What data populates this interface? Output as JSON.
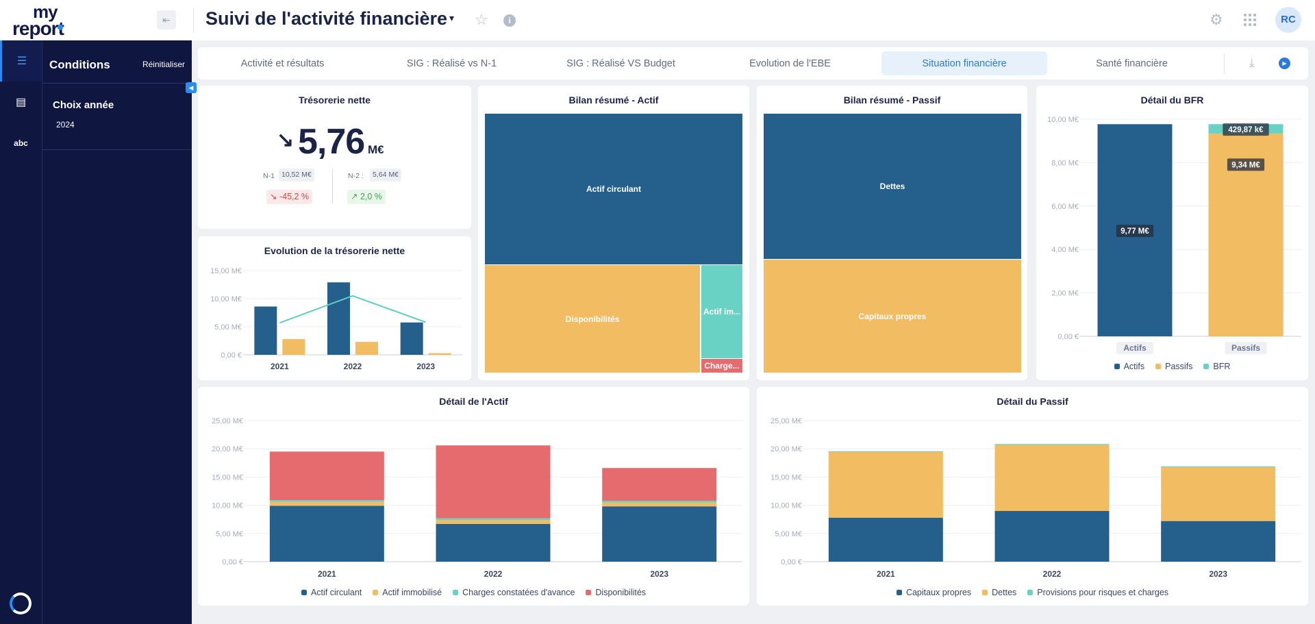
{
  "header": {
    "logo_line1": "my",
    "logo_line2": "report",
    "title": "Suivi de l'activité financière",
    "avatar_initials": "RC"
  },
  "sidebar": {
    "heading": "Conditions",
    "reset_label": "Réinitialiser",
    "filter_label": "Choix année",
    "filter_value": "2024",
    "rail_text_icon": "abc"
  },
  "tabs": [
    {
      "label": "Activité et résultats",
      "active": false
    },
    {
      "label": "SIG : Réalisé vs N-1",
      "active": false
    },
    {
      "label": "SIG : Réalisé VS Budget",
      "active": false
    },
    {
      "label": "Evolution de l'EBE",
      "active": false
    },
    {
      "label": "Situation financière",
      "active": true
    },
    {
      "label": "Santé financière",
      "active": false
    }
  ],
  "colors": {
    "blue": "#25608d",
    "yellow": "#f2bc62",
    "teal": "#6ad2c4",
    "red": "#e56b6f",
    "accent": "#2a7ad9",
    "navy": "#0f1740"
  },
  "kpi": {
    "title": "Trésorerie nette",
    "value": "5,76",
    "unit": "M€",
    "n1_label": "N-1",
    "n1_value": "10,52 M€",
    "n1_delta": "-45,2 %",
    "n2_label": "N-2 :",
    "n2_value": "5,64 M€",
    "n2_delta": "2,0 %"
  },
  "bilan_actif": {
    "title": "Bilan résumé - Actif",
    "blocks": {
      "actif_circulant": "Actif circulant",
      "disponibilites": "Disponibilités",
      "actif_immobilise": "Actif im...",
      "charges": "Charge..."
    }
  },
  "bilan_passif": {
    "title": "Bilan résumé - Passif",
    "blocks": {
      "dettes": "Dettes",
      "capitaux_propres": "Capitaux propres"
    }
  },
  "chart_data": [
    {
      "id": "evolution_tresorerie",
      "type": "bar",
      "title": "Evolution de la trésorerie nette",
      "categories": [
        "2021",
        "2022",
        "2023"
      ],
      "series": [
        {
          "values": [
            8.6,
            12.9,
            5.76
          ],
          "color": "#25608d"
        },
        {
          "values": [
            2.8,
            2.3,
            0.3
          ],
          "color": "#f2bc62"
        },
        {
          "type": "line",
          "values": [
            5.7,
            10.5,
            5.8
          ],
          "color": "#5ecdc1"
        }
      ],
      "ylim": [
        0,
        15
      ],
      "yticks": [
        "0,00 €",
        "5,00 M€",
        "10,00 M€",
        "15,00 M€"
      ]
    },
    {
      "id": "detail_bfr",
      "type": "bar",
      "stacked": true,
      "title": "Détail du BFR",
      "categories": [
        "Actifs",
        "Passifs"
      ],
      "series": [
        {
          "name": "Actifs",
          "values": [
            9.77,
            0
          ],
          "color": "#25608d"
        },
        {
          "name": "Passifs",
          "values": [
            0,
            9.34
          ],
          "color": "#f2bc62"
        },
        {
          "name": "BFR",
          "values": [
            0,
            0.43
          ],
          "color": "#6ad2c4"
        }
      ],
      "data_labels": [
        "9,77 M€",
        "9,34 M€",
        "429,87 k€"
      ],
      "ylim": [
        0,
        10
      ],
      "yticks": [
        "0,00 €",
        "2,00 M€",
        "4,00 M€",
        "6,00 M€",
        "8,00 M€",
        "10,00 M€"
      ],
      "legend": "bottom"
    },
    {
      "id": "detail_actif",
      "type": "bar",
      "stacked": true,
      "title": "Détail de l'Actif",
      "categories": [
        "2021",
        "2022",
        "2023"
      ],
      "series": [
        {
          "name": "Actif circulant",
          "values": [
            9.9,
            6.7,
            9.8
          ],
          "color": "#25608d"
        },
        {
          "name": "Actif immobilisé",
          "values": [
            0.7,
            0.7,
            0.7
          ],
          "color": "#f2bc62"
        },
        {
          "name": "Charges constatées d'avance",
          "values": [
            0.3,
            0.3,
            0.3
          ],
          "color": "#6ad2c4"
        },
        {
          "name": "Disponibilités",
          "values": [
            8.6,
            12.9,
            5.8
          ],
          "color": "#e56b6f"
        }
      ],
      "ylim": [
        0,
        25
      ],
      "yticks": [
        "0,00 €",
        "5,00 M€",
        "10,00 M€",
        "15,00 M€",
        "20,00 M€",
        "25,00 M€"
      ],
      "legend": "bottom"
    },
    {
      "id": "detail_passif",
      "type": "bar",
      "stacked": true,
      "title": "Détail du Passif",
      "categories": [
        "2021",
        "2022",
        "2023"
      ],
      "series": [
        {
          "name": "Capitaux propres",
          "values": [
            7.8,
            9.0,
            7.2
          ],
          "color": "#25608d"
        },
        {
          "name": "Dettes",
          "values": [
            11.7,
            11.7,
            9.6
          ],
          "color": "#f2bc62"
        },
        {
          "name": "Provisions pour risques et charges",
          "values": [
            0.05,
            0.15,
            0.1
          ],
          "color": "#6ad2c4"
        }
      ],
      "ylim": [
        0,
        25
      ],
      "yticks": [
        "0,00 €",
        "5,00 M€",
        "10,00 M€",
        "15,00 M€",
        "20,00 M€",
        "25,00 M€"
      ],
      "legend": "bottom"
    }
  ]
}
